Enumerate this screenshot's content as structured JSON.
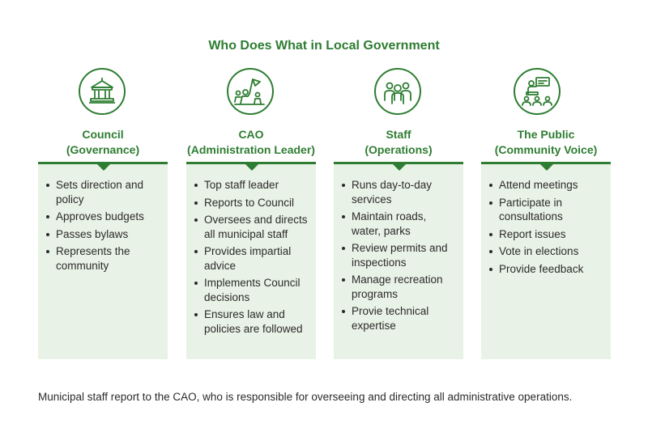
{
  "title": "Who Does What in Local Government",
  "columns": [
    {
      "icon": "city-hall-icon",
      "title_line1": "Council",
      "title_line2": "(Governance)",
      "items": [
        "Sets direction and policy",
        "Approves budgets",
        "Passes bylaws",
        "Represents the community"
      ]
    },
    {
      "icon": "leader-flag-icon",
      "title_line1": "CAO",
      "title_line2": "(Administration Leader)",
      "items": [
        "Top staff leader",
        "Reports to Council",
        "Oversees and directs all municipal staff",
        "Provides impartial advice",
        "Implements Council decisions",
        "Ensures law and policies are followed"
      ]
    },
    {
      "icon": "staff-group-icon",
      "title_line1": "Staff",
      "title_line2": "(Operations)",
      "items": [
        "Runs day-to-day services",
        "Maintain roads, water, parks",
        "Review permits and inspections",
        "Manage recreation programs",
        "Provie technical expertise"
      ]
    },
    {
      "icon": "public-audience-icon",
      "title_line1": "The Public",
      "title_line2": "(Community Voice)",
      "items": [
        "Attend meetings",
        "Participate in consultations",
        "Report issues",
        "Vote in elections",
        "Provide feedback"
      ]
    }
  ],
  "footnote": "Municipal staff report to the CAO, who is responsible for overseeing and directing all administrative operations.",
  "colors": {
    "accent": "#2e7d32",
    "panel": "#e9f2e6",
    "text": "#2b2b2b"
  }
}
